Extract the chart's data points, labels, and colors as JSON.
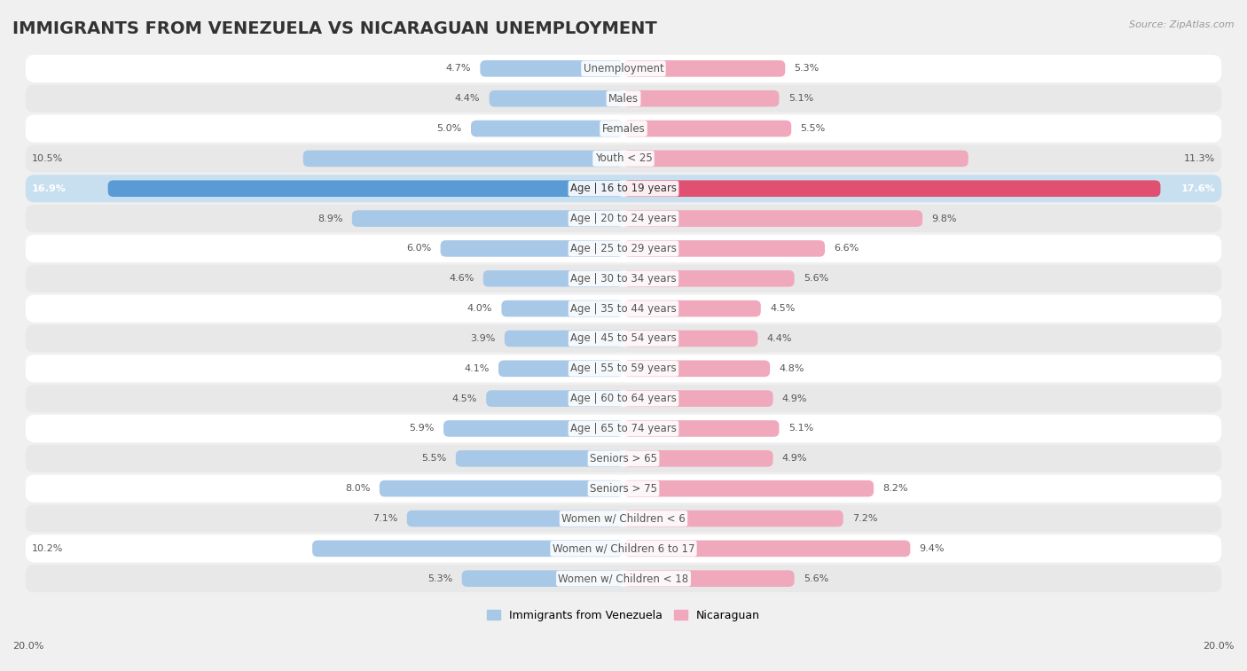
{
  "title": "IMMIGRANTS FROM VENEZUELA VS NICARAGUAN UNEMPLOYMENT",
  "source": "Source: ZipAtlas.com",
  "categories": [
    "Unemployment",
    "Males",
    "Females",
    "Youth < 25",
    "Age | 16 to 19 years",
    "Age | 20 to 24 years",
    "Age | 25 to 29 years",
    "Age | 30 to 34 years",
    "Age | 35 to 44 years",
    "Age | 45 to 54 years",
    "Age | 55 to 59 years",
    "Age | 60 to 64 years",
    "Age | 65 to 74 years",
    "Seniors > 65",
    "Seniors > 75",
    "Women w/ Children < 6",
    "Women w/ Children 6 to 17",
    "Women w/ Children < 18"
  ],
  "venezuela_values": [
    4.7,
    4.4,
    5.0,
    10.5,
    16.9,
    8.9,
    6.0,
    4.6,
    4.0,
    3.9,
    4.1,
    4.5,
    5.9,
    5.5,
    8.0,
    7.1,
    10.2,
    5.3
  ],
  "nicaraguan_values": [
    5.3,
    5.1,
    5.5,
    11.3,
    17.6,
    9.8,
    6.6,
    5.6,
    4.5,
    4.4,
    4.8,
    4.9,
    5.1,
    4.9,
    8.2,
    7.2,
    9.4,
    5.6
  ],
  "venezuela_color": "#a8c8e8",
  "nicaraguan_color": "#f0a8bc",
  "highlight_venezuela_color": "#5b9bd5",
  "highlight_nicaraguan_color": "#e05070",
  "background_color": "#f0f0f0",
  "row_light_color": "#ffffff",
  "row_dark_color": "#e8e8e8",
  "highlight_row_color": "#c8dff0",
  "xlim": 20.0,
  "bar_height": 0.55,
  "title_fontsize": 14,
  "label_fontsize": 8.5,
  "value_fontsize": 8.0,
  "legend_fontsize": 9,
  "source_fontsize": 8
}
